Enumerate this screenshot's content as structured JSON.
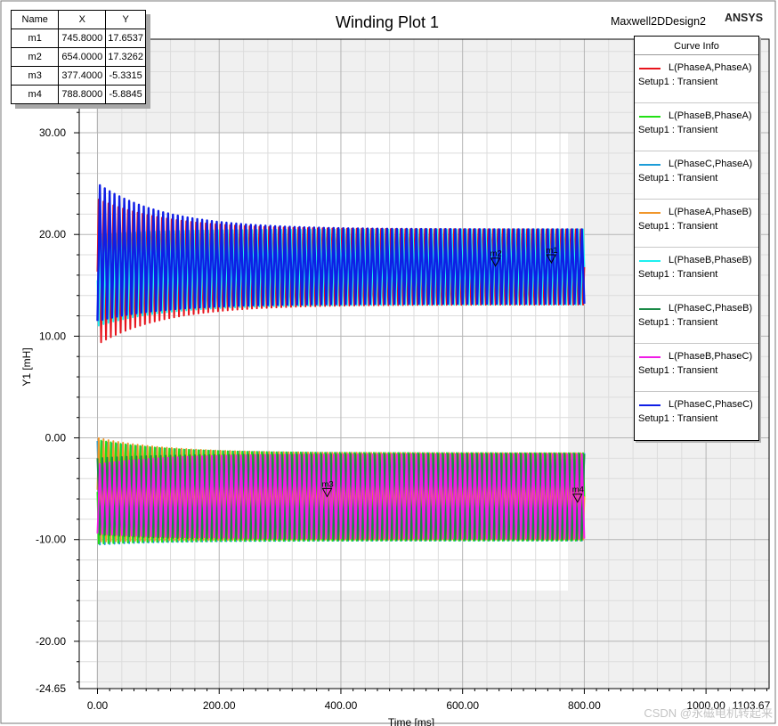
{
  "chart_data": {
    "type": "line",
    "title": "Winding Plot 1",
    "design_name": "Maxwell2DDesign2",
    "brand": "ANSYS",
    "xlabel": "Time [ms]",
    "ylabel": "Y1 [mH]",
    "xlim": [
      -30,
      1103.67
    ],
    "ylim": [
      -24.65,
      39.2
    ],
    "x_ticks": [
      "0.00",
      "200.00",
      "400.00",
      "600.00",
      "800.00",
      "1000.00",
      "1103.67"
    ],
    "y_ticks": [
      "30.00",
      "20.00",
      "10.00",
      "0.00",
      "-10.00",
      "-20.00",
      "-24.65"
    ],
    "grid": true,
    "legend_placement": "top-right",
    "legend_title": "Curve Info",
    "setup_label": "Setup1 : Transient",
    "series": [
      {
        "name": "L(PhaseA,PhaseA)",
        "color": "#e8141c",
        "group": "self",
        "envelope": {
          "t0_max": 23.5,
          "t0_min": 9.2,
          "ss_max": 20.5,
          "ss_min": 13.1
        }
      },
      {
        "name": "L(PhaseB,PhaseA)",
        "color": "#22e014",
        "group": "mutual",
        "envelope": {
          "t0_max": -0.2,
          "t0_min": -10.4,
          "ss_max": -1.5,
          "ss_min": -10.1
        }
      },
      {
        "name": "L(PhaseC,PhaseA)",
        "color": "#1c9cd8",
        "group": "mutual",
        "envelope": {
          "t0_max": -0.3,
          "t0_min": -10.5,
          "ss_max": -1.5,
          "ss_min": -10.1
        }
      },
      {
        "name": "L(PhaseA,PhaseB)",
        "color": "#f0962a",
        "group": "mutual",
        "envelope": {
          "t0_max": 0.0,
          "t0_min": -10.2,
          "ss_max": -1.5,
          "ss_min": -10.0
        }
      },
      {
        "name": "L(PhaseB,PhaseB)",
        "color": "#1ef0f0",
        "group": "self",
        "envelope": {
          "t0_max": 20.0,
          "t0_min": 11.0,
          "ss_max": 20.5,
          "ss_min": 13.1
        }
      },
      {
        "name": "L(PhaseC,PhaseB)",
        "color": "#1a8a46",
        "group": "mutual",
        "envelope": {
          "t0_max": -2.0,
          "t0_min": -9.5,
          "ss_max": -1.6,
          "ss_min": -10.0
        }
      },
      {
        "name": "L(PhaseB,PhaseC)",
        "color": "#f01ce6",
        "group": "mutual",
        "envelope": {
          "t0_max": -2.6,
          "t0_min": -9.4,
          "ss_max": -1.6,
          "ss_min": -9.9
        }
      },
      {
        "name": "L(PhaseC,PhaseC)",
        "color": "#0f1ee6",
        "group": "self",
        "envelope": {
          "t0_max": 25.0,
          "t0_min": 11.5,
          "ss_max": 20.5,
          "ss_min": 13.2
        }
      }
    ],
    "markers": [
      {
        "name": "m1",
        "x": 745.8,
        "y": 17.6537
      },
      {
        "name": "m2",
        "x": 654.0,
        "y": 17.3262
      },
      {
        "name": "m3",
        "x": 377.4,
        "y": -5.3315
      },
      {
        "name": "m4",
        "x": 788.8,
        "y": -5.8845
      }
    ],
    "marker_table_headers": [
      "Name",
      "X",
      "Y"
    ],
    "marker_table_rows": [
      [
        "m1",
        "745.8000",
        "17.6537"
      ],
      [
        "m2",
        "654.0000",
        "17.3262"
      ],
      [
        "m3",
        "377.4000",
        "-5.3315"
      ],
      [
        "m4",
        "788.8000",
        "-5.8845"
      ]
    ],
    "data_x_range": [
      0,
      800
    ],
    "watermark": "CSDN @永磁电机转起来"
  }
}
